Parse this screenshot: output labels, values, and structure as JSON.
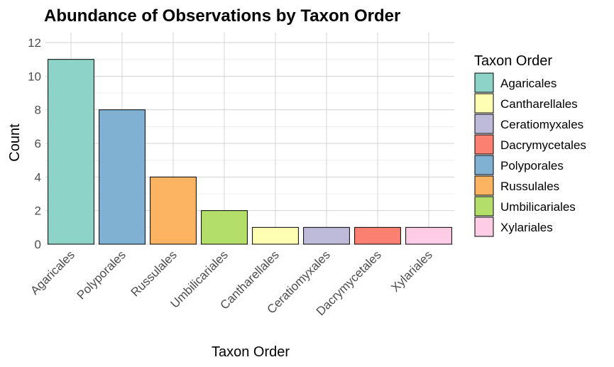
{
  "chart_data": {
    "type": "bar",
    "title": "Abundance of Observations by Taxon Order",
    "xlabel": "Taxon Order",
    "ylabel": "Count",
    "categories": [
      "Agaricales",
      "Polyporales",
      "Russulales",
      "Umbilicariales",
      "Cantharellales",
      "Ceratiomyxales",
      "Dacrymycetales",
      "Xylariales"
    ],
    "values": [
      11,
      8,
      4,
      2,
      1,
      1,
      1,
      1
    ],
    "colors": [
      "#8DD3C7",
      "#80B1D3",
      "#FDB462",
      "#B3DE69",
      "#FFFFB3",
      "#BEBADA",
      "#FB8072",
      "#FCCDE5"
    ],
    "ylim": [
      0,
      12
    ],
    "yticks": [
      0,
      2,
      4,
      6,
      8,
      10,
      12
    ],
    "grid": true,
    "legend": {
      "title": "Taxon Order",
      "position": "right",
      "entries": [
        {
          "label": "Agaricales",
          "color": "#8DD3C7"
        },
        {
          "label": "Cantharellales",
          "color": "#FFFFB3"
        },
        {
          "label": "Ceratiomyxales",
          "color": "#BEBADA"
        },
        {
          "label": "Dacrymycetales",
          "color": "#FB8072"
        },
        {
          "label": "Polyporales",
          "color": "#80B1D3"
        },
        {
          "label": "Russulales",
          "color": "#FDB462"
        },
        {
          "label": "Umbilicariales",
          "color": "#B3DE69"
        },
        {
          "label": "Xylariales",
          "color": "#FCCDE5"
        }
      ]
    }
  }
}
